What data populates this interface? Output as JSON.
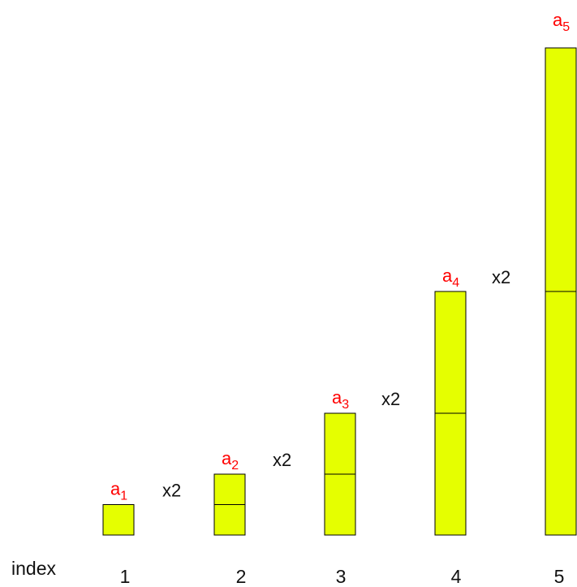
{
  "diagram": {
    "index_label": "index",
    "unit_value": 1,
    "ratio_label": "x2",
    "bar_color": "#e5ff00",
    "term_color": "#ff0000",
    "terms": [
      {
        "index": "1",
        "base": "a",
        "subscript": "1",
        "value": 1
      },
      {
        "index": "2",
        "base": "a",
        "subscript": "2",
        "value": 2
      },
      {
        "index": "3",
        "base": "a",
        "subscript": "3",
        "value": 4
      },
      {
        "index": "4",
        "base": "a",
        "subscript": "4",
        "value": 8
      },
      {
        "index": "5",
        "base": "a",
        "subscript": "5",
        "value": 16
      }
    ]
  }
}
